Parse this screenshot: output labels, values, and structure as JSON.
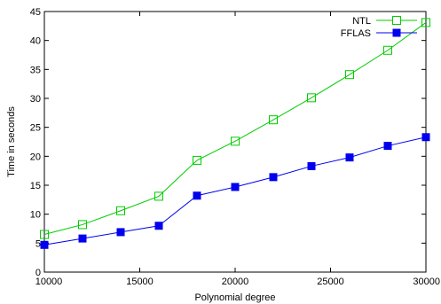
{
  "chart_data": {
    "type": "line",
    "title": "",
    "xlabel": "Polynomial degree",
    "ylabel": "Time in seconds",
    "xlim": [
      10000,
      30000
    ],
    "ylim": [
      0,
      45
    ],
    "xticks": [
      10000,
      15000,
      20000,
      25000,
      30000
    ],
    "yticks": [
      0,
      5,
      10,
      15,
      20,
      25,
      30,
      35,
      40,
      45
    ],
    "grid": false,
    "legend_position": "top-right",
    "x": [
      10000,
      12000,
      14000,
      16000,
      18000,
      20000,
      22000,
      24000,
      26000,
      28000,
      30000
    ],
    "series": [
      {
        "name": "NTL",
        "color": "#00cc00",
        "marker": "open-square",
        "values": [
          6.5,
          8.2,
          10.6,
          13.1,
          19.3,
          22.6,
          26.3,
          30.1,
          34.1,
          38.3,
          43.1
        ]
      },
      {
        "name": "FFLAS",
        "color": "#0000ee",
        "marker": "filled-square",
        "values": [
          4.7,
          5.8,
          6.9,
          8.0,
          13.2,
          14.7,
          16.4,
          18.3,
          19.8,
          21.8,
          23.3
        ]
      }
    ]
  }
}
